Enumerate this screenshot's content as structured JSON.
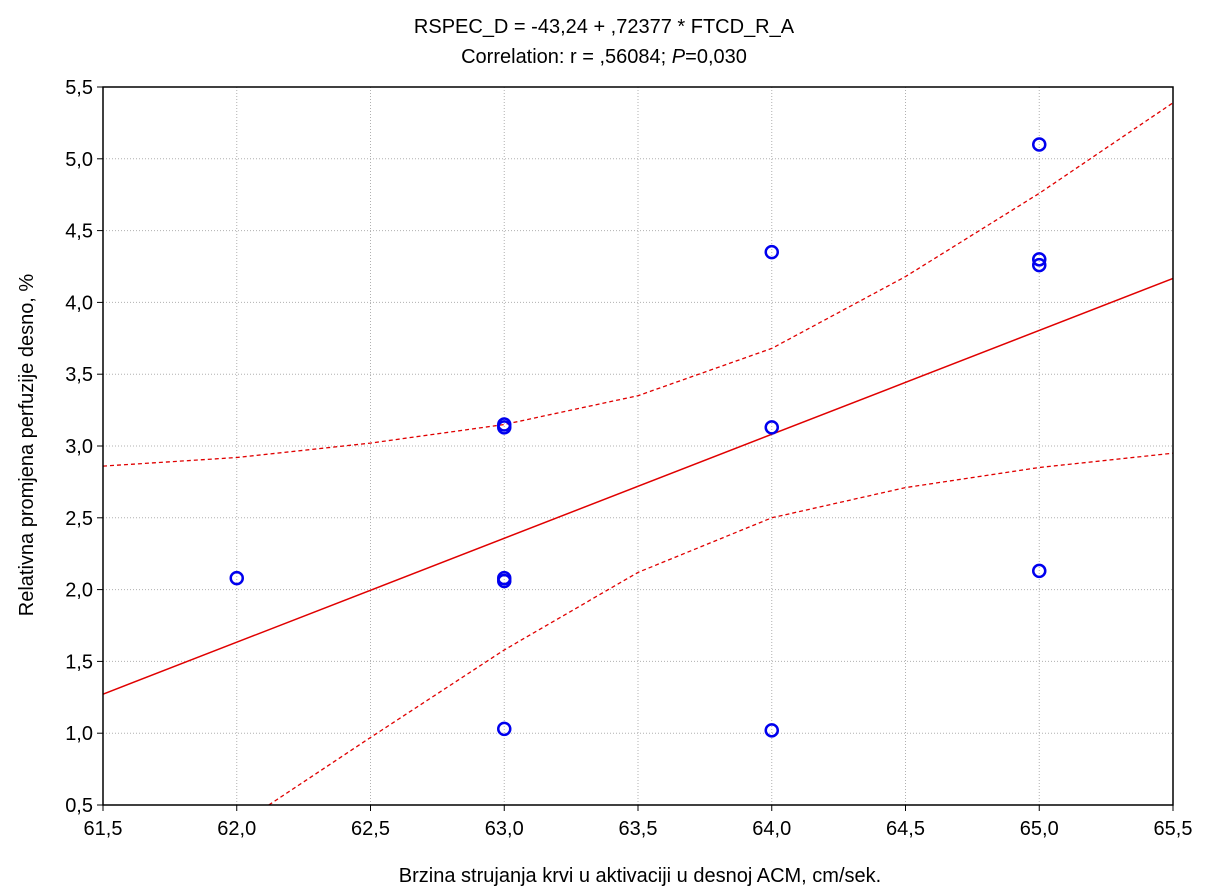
{
  "chart_data": {
    "type": "scatter",
    "title_line1": "RSPEC_D  = -43,24 + ,72377 * FTCD_R_A",
    "title_line2_prefix": "Correlation: r = ,56084; ",
    "title_line2_italic": "P",
    "title_line2_suffix": "=0,030",
    "xlabel": "Brzina strujanja krvi u aktivaciji u desnoj ACM, cm/sek.",
    "ylabel": "Relativna promjena perfuzije desno, %",
    "xlim": [
      61.5,
      65.5
    ],
    "ylim": [
      0.5,
      5.5
    ],
    "x_ticks": [
      61.5,
      62.0,
      62.5,
      63.0,
      63.5,
      64.0,
      64.5,
      65.0,
      65.5
    ],
    "x_tick_labels": [
      "61,5",
      "62,0",
      "62,5",
      "63,0",
      "63,5",
      "64,0",
      "64,5",
      "65,0",
      "65,5"
    ],
    "y_ticks": [
      0.5,
      1.0,
      1.5,
      2.0,
      2.5,
      3.0,
      3.5,
      4.0,
      4.5,
      5.0,
      5.5
    ],
    "y_tick_labels": [
      "0,5",
      "1,0",
      "1,5",
      "2,0",
      "2,5",
      "3,0",
      "3,5",
      "4,0",
      "4,5",
      "5,0",
      "5,5"
    ],
    "grid": true,
    "points": [
      {
        "x": 62.0,
        "y": 2.08
      },
      {
        "x": 63.0,
        "y": 3.15
      },
      {
        "x": 63.0,
        "y": 3.13
      },
      {
        "x": 63.0,
        "y": 2.08
      },
      {
        "x": 63.0,
        "y": 2.06
      },
      {
        "x": 63.0,
        "y": 1.03
      },
      {
        "x": 64.0,
        "y": 4.35
      },
      {
        "x": 64.0,
        "y": 3.13
      },
      {
        "x": 64.0,
        "y": 1.02
      },
      {
        "x": 65.0,
        "y": 5.1
      },
      {
        "x": 65.0,
        "y": 4.3
      },
      {
        "x": 65.0,
        "y": 4.26
      },
      {
        "x": 65.0,
        "y": 2.13
      }
    ],
    "regression": {
      "intercept": -43.24,
      "slope": 0.72377
    },
    "confidence_upper": [
      {
        "x": 61.5,
        "y": 2.86
      },
      {
        "x": 62.0,
        "y": 2.92
      },
      {
        "x": 62.5,
        "y": 3.02
      },
      {
        "x": 63.0,
        "y": 3.15
      },
      {
        "x": 63.5,
        "y": 3.35
      },
      {
        "x": 64.0,
        "y": 3.68
      },
      {
        "x": 64.5,
        "y": 4.18
      },
      {
        "x": 65.0,
        "y": 4.76
      },
      {
        "x": 65.5,
        "y": 5.39
      }
    ],
    "confidence_lower": [
      {
        "x": 62.12,
        "y": 0.5
      },
      {
        "x": 62.5,
        "y": 0.97
      },
      {
        "x": 63.0,
        "y": 1.58
      },
      {
        "x": 63.5,
        "y": 2.12
      },
      {
        "x": 64.0,
        "y": 2.5
      },
      {
        "x": 64.5,
        "y": 2.71
      },
      {
        "x": 65.0,
        "y": 2.85
      },
      {
        "x": 65.5,
        "y": 2.95
      }
    ],
    "colors": {
      "points": "#0000ee",
      "regression": "#e00000",
      "confidence": "#e00000",
      "grid": "#b0b0b0",
      "axes": "#000000"
    }
  }
}
